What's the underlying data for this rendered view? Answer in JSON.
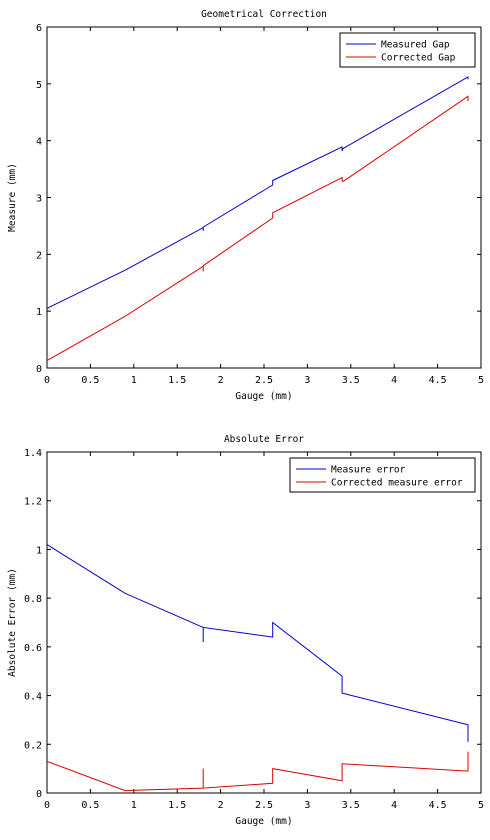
{
  "chart_data": [
    {
      "type": "line",
      "title": "Geometrical Correction",
      "xlabel": "Gauge (mm)",
      "ylabel": "Measure (mm)",
      "xlim": [
        0,
        5
      ],
      "ylim": [
        0,
        6
      ],
      "xticks": [
        "0",
        "0.5",
        "1",
        "1.5",
        "2",
        "2.5",
        "3",
        "3.5",
        "4",
        "4.5",
        "5"
      ],
      "yticks": [
        "0",
        "1",
        "2",
        "3",
        "4",
        "5",
        "6"
      ],
      "grid": false,
      "legend_position": "top-right",
      "series": [
        {
          "name": "Measured Gap",
          "color": "#0000cc",
          "points": [
            [
              0.0,
              1.05
            ],
            [
              0.9,
              1.72
            ],
            [
              1.8,
              2.47
            ],
            [
              1.8,
              2.41
            ],
            [
              1.8,
              2.48
            ],
            [
              2.6,
              3.22
            ],
            [
              2.6,
              3.3
            ],
            [
              3.4,
              3.89
            ],
            [
              3.4,
              3.82
            ],
            [
              3.41,
              3.86
            ],
            [
              4.85,
              5.12
            ],
            [
              4.85,
              5.08
            ]
          ]
        },
        {
          "name": "Corrected Gap",
          "color": "#dd0000",
          "points": [
            [
              0.0,
              0.13
            ],
            [
              0.9,
              0.91
            ],
            [
              1.8,
              1.79
            ],
            [
              1.8,
              1.7
            ],
            [
              1.8,
              1.8
            ],
            [
              2.6,
              2.64
            ],
            [
              2.6,
              2.73
            ],
            [
              3.4,
              3.35
            ],
            [
              3.4,
              3.3
            ],
            [
              3.41,
              3.28
            ],
            [
              4.85,
              4.78
            ],
            [
              4.85,
              4.7
            ]
          ]
        }
      ]
    },
    {
      "type": "line",
      "title": "Absolute Error",
      "xlabel": "Gauge (mm)",
      "ylabel": "Absolute Error (mm)",
      "xlim": [
        0,
        5
      ],
      "ylim": [
        0,
        1.4
      ],
      "xticks": [
        "0",
        "0.5",
        "1",
        "1.5",
        "2",
        "2.5",
        "3",
        "3.5",
        "4",
        "4.5",
        "5"
      ],
      "yticks": [
        "0",
        "0.2",
        "0.4",
        "0.6",
        "0.8",
        "1",
        "1.2",
        "1.4"
      ],
      "grid": false,
      "legend_position": "top-right",
      "series": [
        {
          "name": "Measure error",
          "color": "#0000cc",
          "points": [
            [
              0.0,
              1.02
            ],
            [
              0.9,
              0.82
            ],
            [
              1.8,
              0.68
            ],
            [
              1.8,
              0.62
            ],
            [
              1.8,
              0.68
            ],
            [
              2.6,
              0.64
            ],
            [
              2.6,
              0.7
            ],
            [
              3.4,
              0.48
            ],
            [
              3.4,
              0.41
            ],
            [
              4.85,
              0.28
            ],
            [
              4.85,
              0.21
            ]
          ]
        },
        {
          "name": "Corrected measure error",
          "color": "#dd0000",
          "points": [
            [
              0.0,
              0.13
            ],
            [
              0.9,
              0.01
            ],
            [
              1.8,
              0.02
            ],
            [
              1.8,
              0.1
            ],
            [
              1.8,
              0.02
            ],
            [
              2.6,
              0.04
            ],
            [
              2.6,
              0.1
            ],
            [
              3.4,
              0.05
            ],
            [
              3.4,
              0.12
            ],
            [
              4.85,
              0.09
            ],
            [
              4.85,
              0.17
            ]
          ]
        }
      ]
    }
  ]
}
